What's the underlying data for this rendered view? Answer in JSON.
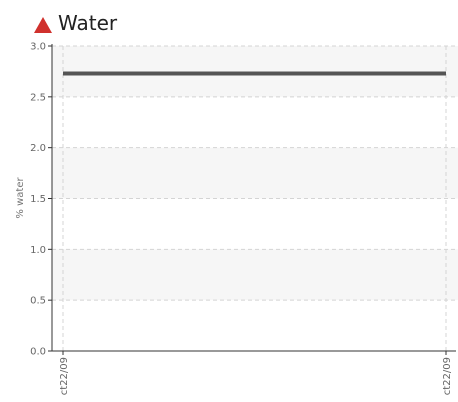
{
  "header": {
    "title": "Water",
    "icon": "warning-triangle-icon",
    "icon_color": "#d0312d"
  },
  "chart_data": {
    "type": "line",
    "title": "Water",
    "xlabel": "",
    "ylabel": "% water",
    "ylim": [
      0,
      3.0
    ],
    "yticks": [
      "0.0",
      "0.5",
      "1.0",
      "1.5",
      "2.0",
      "2.5",
      "3.0"
    ],
    "xticks": [
      "ct22/09",
      "ct22/09"
    ],
    "grid": true,
    "series": [
      {
        "color": "#555555",
        "x": [
          "ct22/09",
          "ct22/09"
        ],
        "values": [
          2.73,
          2.73
        ]
      }
    ]
  }
}
